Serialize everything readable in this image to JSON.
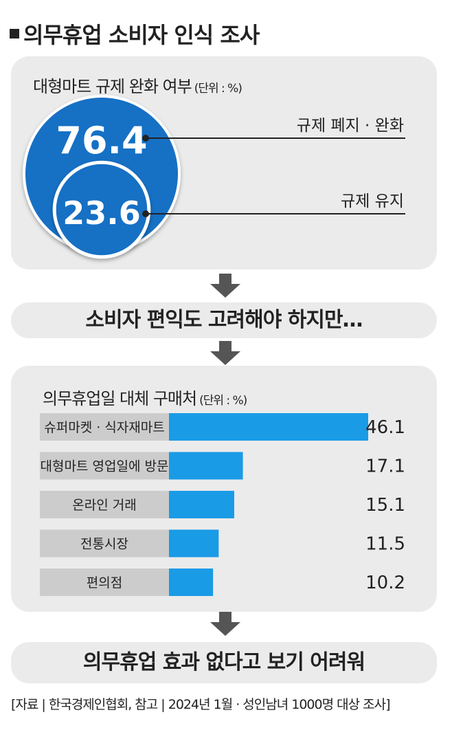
{
  "title": "의무휴업 소비자 인식 조사",
  "section1": {
    "heading": "대형마트 규제 완화 여부",
    "unit": "(단위 : %)"
  },
  "bubble_chart": {
    "type": "bubble",
    "items": [
      {
        "label": "규제 폐지 · 완화",
        "value": 76.4,
        "display": "76.4"
      },
      {
        "label": "규제 유지",
        "value": 23.6,
        "display": "23.6"
      }
    ],
    "color": "#1670c4"
  },
  "pill1": "소비자 편익도 고려해야 하지만…",
  "chart_data": {
    "type": "bar",
    "title": "의무휴업일 대체 구매처",
    "unit": "(단위 : %)",
    "categories": [
      "슈퍼마켓 · 식자재마트",
      "대형마트 영업일에 방문",
      "온라인 거래",
      "전통시장",
      "편의점"
    ],
    "values": [
      46.1,
      17.1,
      15.1,
      11.5,
      10.2
    ],
    "value_labels": [
      "46.1",
      "17.1",
      "15.1",
      "11.5",
      "10.2"
    ],
    "bar_color": "#1a9be6",
    "orientation": "horizontal"
  },
  "pill2": "의무휴업 효과 없다고 보기 어려워",
  "footer": "[자료 | 한국경제인협회, 참고 | 2024년 1월 · 성인남녀 1000명 대상 조사]"
}
